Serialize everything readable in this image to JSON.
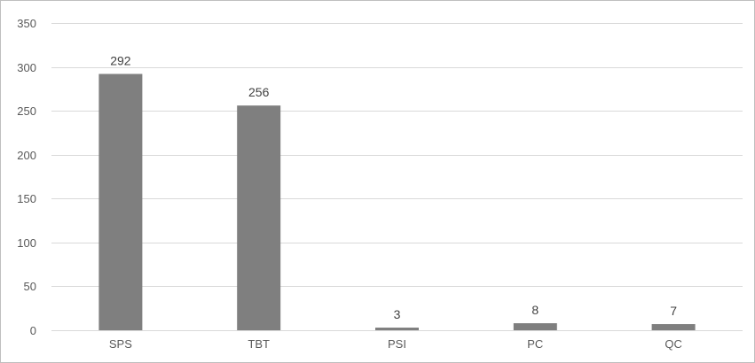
{
  "chart_data": {
    "type": "bar",
    "categories": [
      "SPS",
      "TBT",
      "PSI",
      "PC",
      "QC"
    ],
    "values": [
      292,
      256,
      3,
      8,
      7
    ],
    "data_labels": [
      "292",
      "256",
      "3",
      "8",
      "7"
    ],
    "title": "",
    "xlabel": "",
    "ylabel": "",
    "ylim": [
      0,
      350
    ],
    "yticks": [
      0,
      50,
      100,
      150,
      200,
      250,
      300,
      350
    ],
    "grid": true,
    "legend": "none",
    "bar_color": "#7f7f7f",
    "grid_color": "#d9d9d9"
  }
}
